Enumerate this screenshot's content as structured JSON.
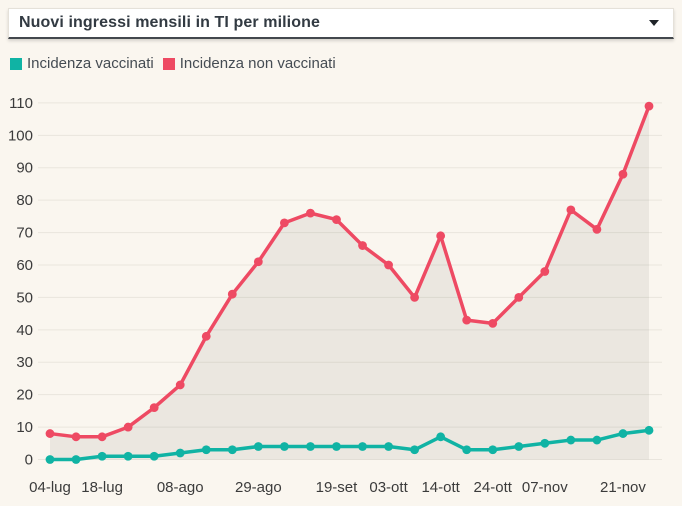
{
  "header": {
    "title": "Nuovi ingressi mensili in TI per milione",
    "dropdown_icon": "caret-down-icon"
  },
  "legend": {
    "items": [
      {
        "label": "Incidenza vaccinati",
        "color": "#10b3a4"
      },
      {
        "label": "Incidenza non vaccinati",
        "color": "#ee4a63"
      }
    ]
  },
  "chart_data": {
    "type": "line",
    "title": "Nuovi ingressi mensili in TI per milione",
    "xlabel": "",
    "ylabel": "",
    "ylim": [
      0,
      110
    ],
    "yticks": [
      0,
      10,
      20,
      30,
      40,
      50,
      60,
      70,
      80,
      90,
      100,
      110
    ],
    "grid": "horizontal",
    "legend_position": "top-left",
    "n_points": 24,
    "x_tick_labels": [
      {
        "index": 0,
        "label": "04-lug"
      },
      {
        "index": 2,
        "label": "18-lug"
      },
      {
        "index": 5,
        "label": "08-ago"
      },
      {
        "index": 8,
        "label": "29-ago"
      },
      {
        "index": 11,
        "label": "19-set"
      },
      {
        "index": 13,
        "label": "03-ott"
      },
      {
        "index": 15,
        "label": "14-ott"
      },
      {
        "index": 17,
        "label": "24-ott"
      },
      {
        "index": 19,
        "label": "07-nov"
      },
      {
        "index": 22,
        "label": "21-nov"
      }
    ],
    "series": [
      {
        "name": "Incidenza vaccinati",
        "color": "#10b3a4",
        "fill": false,
        "values": [
          0,
          0,
          1,
          1,
          1,
          2,
          3,
          3,
          4,
          4,
          4,
          4,
          4,
          4,
          3,
          7,
          3,
          3,
          4,
          5,
          6,
          6,
          8,
          9
        ]
      },
      {
        "name": "Incidenza non vaccinati",
        "color": "#ee4a63",
        "fill": true,
        "values": [
          8,
          7,
          7,
          10,
          16,
          23,
          38,
          51,
          61,
          73,
          76,
          74,
          66,
          60,
          50,
          69,
          43,
          42,
          50,
          58,
          77,
          71,
          88,
          109
        ]
      }
    ]
  },
  "colors": {
    "background": "#faf6ef",
    "select_background": "#ffffff",
    "select_border_bottom": "#43484d",
    "grid": "#e9e5dd",
    "axis_text": "#3b3b3b",
    "title_text": "#323a42",
    "legend_text": "#454c53",
    "area_fill": "rgba(60,58,44,0.075)"
  }
}
